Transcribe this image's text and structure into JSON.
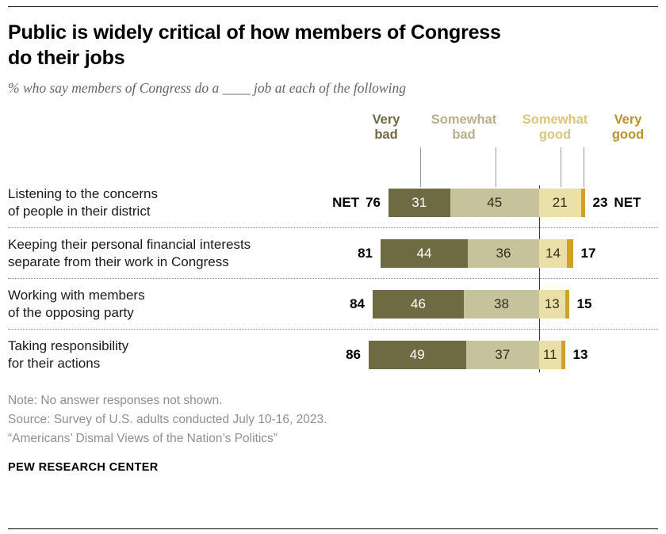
{
  "header": {
    "title": "Public is widely critical of how members of Congress\ndo their jobs",
    "subtitle": "% who say members of Congress do a ____ job at each of the following"
  },
  "chart_data": {
    "type": "bar",
    "variant": "diverging-stacked-horizontal",
    "unit": "% of U.S. adults",
    "net_word": "NET",
    "categories": [
      "Listening to the concerns\nof people in their district",
      "Keeping their personal financial interests\nseparate from their work in Congress",
      "Working with members\nof the opposing party",
      "Taking responsibility\nfor their actions"
    ],
    "series": [
      {
        "name": "Very bad",
        "legend_label": "Very\nbad",
        "color": "#6E6A42",
        "legend_color": "#6E6A42",
        "label_color": "#FFFFFF",
        "values": [
          31,
          44,
          46,
          49
        ],
        "show_labels": true
      },
      {
        "name": "Somewhat bad",
        "legend_label": "Somewhat\nbad",
        "color": "#C6C29C",
        "legend_color": "#B5B08A",
        "label_color": "#2F2D1B",
        "values": [
          45,
          36,
          38,
          37
        ],
        "show_labels": true
      },
      {
        "name": "Somewhat good",
        "legend_label": "Somewhat\ngood",
        "color": "#EADFA6",
        "legend_color": "#D9C67C",
        "label_color": "#2F2D1B",
        "values": [
          21,
          14,
          13,
          11
        ],
        "show_labels": true
      },
      {
        "name": "Very good",
        "legend_label": "Very\ngood",
        "color": "#CDA12A",
        "legend_color": "#B8922A",
        "label_color": "#2F2D1B",
        "values": [
          2,
          3,
          2,
          2
        ],
        "show_labels": false
      }
    ],
    "net_bad": [
      76,
      81,
      84,
      86
    ],
    "net_good": [
      23,
      17,
      15,
      13
    ]
  },
  "notes": {
    "note": "Note: No answer responses not shown.",
    "source": "Source: Survey of U.S. adults conducted July 10-16, 2023.",
    "quote": "“Americans’ Dismal Views of the Nation’s Politics”"
  },
  "footer": {
    "wordmark": "PEW RESEARCH CENTER"
  }
}
